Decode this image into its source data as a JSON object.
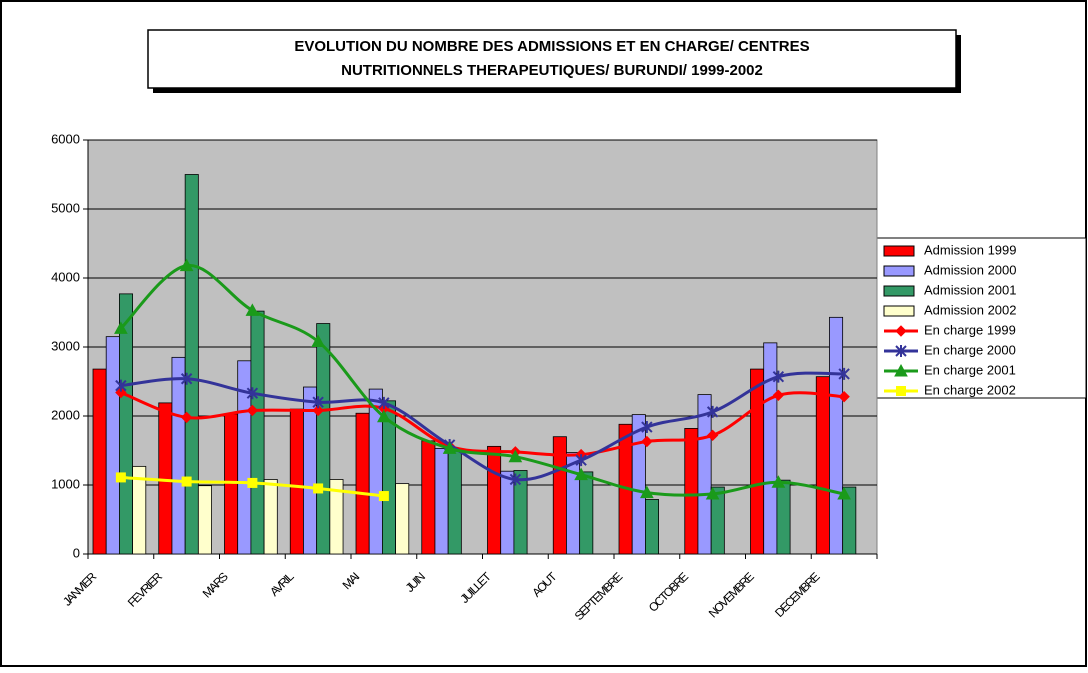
{
  "chart_data": {
    "type": "bar",
    "title": [
      "EVOLUTION DU NOMBRE DES ADMISSIONS ET EN CHARGE/ CENTRES",
      "NUTRITIONNELS THERAPEUTIQUES/ BURUNDI/ 1999-2002"
    ],
    "categories": [
      "JANVIER",
      "FEVRIER",
      "MARS",
      "AVRIL",
      "MAI",
      "JUIN",
      "JUILLET",
      "AOUT",
      "SEPTEMBRE",
      "OCTOBRE",
      "NOVEMBRE",
      "DECEMBRE"
    ],
    "series": [
      {
        "name": "Admission 1999",
        "type": "bar",
        "color": "#ff0000",
        "values": [
          2680,
          2190,
          2030,
          2100,
          2040,
          1640,
          1560,
          1700,
          1880,
          1820,
          2680,
          2570
        ]
      },
      {
        "name": "Admission 2000",
        "type": "bar",
        "color": "#9999ff",
        "values": [
          3150,
          2850,
          2800,
          2420,
          2390,
          1530,
          1200,
          1470,
          2020,
          2310,
          3060,
          3430
        ]
      },
      {
        "name": "Admission 2001",
        "type": "bar",
        "color": "#339966",
        "values": [
          3770,
          5500,
          3520,
          3340,
          2220,
          1490,
          1210,
          1190,
          790,
          970,
          1070,
          970
        ]
      },
      {
        "name": "Admission 2002",
        "type": "bar",
        "color": "#ffffcc",
        "values": [
          1270,
          990,
          1080,
          1080,
          1020,
          null,
          null,
          null,
          null,
          null,
          null,
          null
        ]
      },
      {
        "name": "En charge 1999",
        "type": "line",
        "marker": "diamond",
        "color": "#ff0000",
        "values": [
          2340,
          1980,
          2080,
          2080,
          2110,
          1560,
          1480,
          1440,
          1630,
          1720,
          2300,
          2280
        ]
      },
      {
        "name": "En charge 2000",
        "type": "line",
        "marker": "star",
        "color": "#333399",
        "values": [
          2440,
          2540,
          2330,
          2200,
          2190,
          1580,
          1080,
          1360,
          1840,
          2060,
          2570,
          2610
        ]
      },
      {
        "name": "En charge 2001",
        "type": "line",
        "marker": "triangle",
        "color": "#1a9a1a",
        "values": [
          3270,
          4180,
          3530,
          3080,
          1990,
          1530,
          1410,
          1150,
          890,
          870,
          1040,
          870
        ]
      },
      {
        "name": "En charge 2002",
        "type": "line",
        "marker": "square",
        "color": "#ffff00",
        "values": [
          1110,
          1050,
          1030,
          950,
          840,
          null,
          null,
          null,
          null,
          null,
          null,
          null
        ]
      }
    ],
    "ylim": [
      0,
      6000
    ],
    "yticks": [
      0,
      1000,
      2000,
      3000,
      4000,
      5000,
      6000
    ],
    "grid": true,
    "legend": "right",
    "plot_background": "#c0c0c0"
  }
}
